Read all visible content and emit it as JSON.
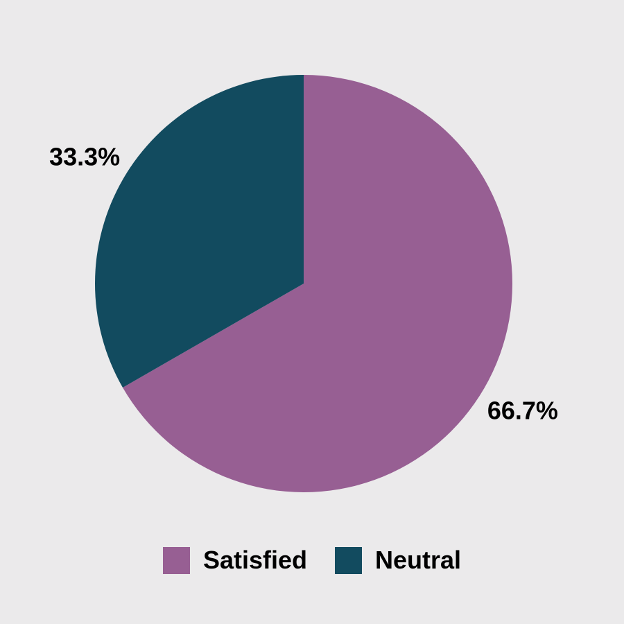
{
  "chart_data": {
    "type": "pie",
    "title": "",
    "slices": [
      {
        "name": "Satisfied",
        "value": 66.7,
        "label": "66.7%",
        "color": "#975f93"
      },
      {
        "name": "Neutral",
        "value": 33.3,
        "label": "33.3%",
        "color": "#124b5f"
      }
    ],
    "legend_position": "bottom-center"
  },
  "colors": {
    "background": "#ebeaeb"
  }
}
